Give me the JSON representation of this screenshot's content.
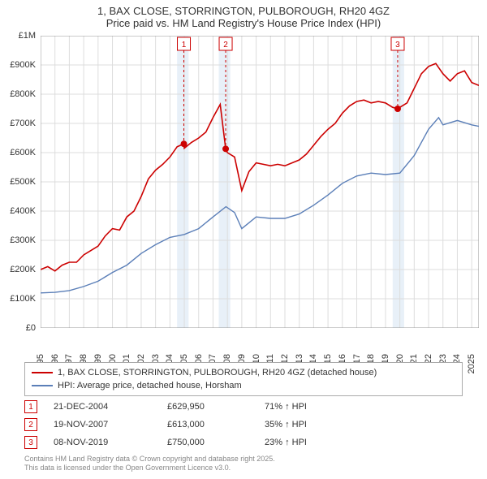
{
  "title": {
    "line1": "1, BAX CLOSE, STORRINGTON, PULBOROUGH, RH20 4GZ",
    "line2": "Price paid vs. HM Land Registry's House Price Index (HPI)",
    "fontsize": 13,
    "color": "#333333"
  },
  "chart": {
    "type": "line",
    "background_color": "#ffffff",
    "grid_color": "#dddddd",
    "axis_color": "#999999",
    "label_color": "#333333",
    "label_fontsize": 11,
    "x": {
      "min": 1995,
      "max": 2025.5,
      "ticks": [
        1995,
        1996,
        1997,
        1998,
        1999,
        2000,
        2001,
        2002,
        2003,
        2004,
        2005,
        2006,
        2007,
        2008,
        2009,
        2010,
        2011,
        2012,
        2013,
        2014,
        2015,
        2016,
        2017,
        2018,
        2019,
        2020,
        2021,
        2022,
        2023,
        2024,
        2025
      ],
      "tick_rotation_deg": -90
    },
    "y": {
      "min": 0,
      "max": 1000000,
      "ticks": [
        0,
        100000,
        200000,
        300000,
        400000,
        500000,
        600000,
        700000,
        800000,
        900000,
        1000000
      ],
      "tick_labels": [
        "£0",
        "£100K",
        "£200K",
        "£300K",
        "£400K",
        "£500K",
        "£600K",
        "£700K",
        "£800K",
        "£900K",
        "£1M"
      ]
    },
    "highlight_bands": {
      "color": "#d6e3f3",
      "opacity": 0.55,
      "years": [
        [
          2004.5,
          2005.3
        ],
        [
          2007.4,
          2008.2
        ],
        [
          2019.5,
          2020.3
        ]
      ]
    },
    "series": [
      {
        "name": "1, BAX CLOSE, STORRINGTON, PULBOROUGH, RH20 4GZ (detached house)",
        "color": "#cc0000",
        "line_width": 1.6,
        "points": [
          [
            1995,
            200000
          ],
          [
            1995.5,
            210000
          ],
          [
            1996,
            195000
          ],
          [
            1996.5,
            215000
          ],
          [
            1997,
            225000
          ],
          [
            1997.5,
            225000
          ],
          [
            1998,
            250000
          ],
          [
            1998.5,
            265000
          ],
          [
            1999,
            280000
          ],
          [
            1999.5,
            315000
          ],
          [
            2000,
            340000
          ],
          [
            2000.5,
            335000
          ],
          [
            2001,
            380000
          ],
          [
            2001.5,
            400000
          ],
          [
            2002,
            450000
          ],
          [
            2002.5,
            510000
          ],
          [
            2003,
            540000
          ],
          [
            2003.5,
            560000
          ],
          [
            2004,
            585000
          ],
          [
            2004.5,
            620000
          ],
          [
            2004.97,
            629950
          ],
          [
            2005,
            615000
          ],
          [
            2005.5,
            635000
          ],
          [
            2006,
            650000
          ],
          [
            2006.5,
            670000
          ],
          [
            2007,
            720000
          ],
          [
            2007.5,
            765000
          ],
          [
            2007.88,
            613000
          ],
          [
            2008,
            600000
          ],
          [
            2008.5,
            585000
          ],
          [
            2009,
            470000
          ],
          [
            2009.5,
            535000
          ],
          [
            2010,
            565000
          ],
          [
            2010.5,
            560000
          ],
          [
            2011,
            555000
          ],
          [
            2011.5,
            560000
          ],
          [
            2012,
            555000
          ],
          [
            2012.5,
            565000
          ],
          [
            2013,
            575000
          ],
          [
            2013.5,
            595000
          ],
          [
            2014,
            625000
          ],
          [
            2014.5,
            655000
          ],
          [
            2015,
            680000
          ],
          [
            2015.5,
            700000
          ],
          [
            2016,
            735000
          ],
          [
            2016.5,
            760000
          ],
          [
            2017,
            775000
          ],
          [
            2017.5,
            780000
          ],
          [
            2018,
            770000
          ],
          [
            2018.5,
            775000
          ],
          [
            2019,
            770000
          ],
          [
            2019.5,
            755000
          ],
          [
            2019.85,
            750000
          ],
          [
            2020,
            755000
          ],
          [
            2020.5,
            770000
          ],
          [
            2021,
            820000
          ],
          [
            2021.5,
            870000
          ],
          [
            2022,
            895000
          ],
          [
            2022.5,
            905000
          ],
          [
            2023,
            870000
          ],
          [
            2023.5,
            845000
          ],
          [
            2024,
            870000
          ],
          [
            2024.5,
            880000
          ],
          [
            2025,
            840000
          ],
          [
            2025.5,
            830000
          ]
        ]
      },
      {
        "name": "HPI: Average price, detached house, Horsham",
        "color": "#5b7fb8",
        "line_width": 1.4,
        "points": [
          [
            1995,
            120000
          ],
          [
            1996,
            122000
          ],
          [
            1997,
            128000
          ],
          [
            1998,
            142000
          ],
          [
            1999,
            160000
          ],
          [
            2000,
            190000
          ],
          [
            2001,
            215000
          ],
          [
            2002,
            255000
          ],
          [
            2003,
            285000
          ],
          [
            2004,
            310000
          ],
          [
            2005,
            320000
          ],
          [
            2006,
            340000
          ],
          [
            2007,
            380000
          ],
          [
            2007.9,
            415000
          ],
          [
            2008.5,
            395000
          ],
          [
            2009,
            340000
          ],
          [
            2009.5,
            360000
          ],
          [
            2010,
            380000
          ],
          [
            2011,
            375000
          ],
          [
            2012,
            375000
          ],
          [
            2013,
            390000
          ],
          [
            2014,
            420000
          ],
          [
            2015,
            455000
          ],
          [
            2016,
            495000
          ],
          [
            2017,
            520000
          ],
          [
            2018,
            530000
          ],
          [
            2019,
            525000
          ],
          [
            2020,
            530000
          ],
          [
            2021,
            590000
          ],
          [
            2022,
            680000
          ],
          [
            2022.7,
            720000
          ],
          [
            2023,
            695000
          ],
          [
            2024,
            710000
          ],
          [
            2025,
            695000
          ],
          [
            2025.5,
            690000
          ]
        ]
      }
    ],
    "sale_markers": {
      "border_color": "#cc0000",
      "text_color": "#cc0000",
      "dot_color": "#cc0000",
      "dash_color": "#cc0000",
      "dot_radius": 4,
      "points": [
        {
          "id": "1",
          "year": 2004.97,
          "price": 629950
        },
        {
          "id": "2",
          "year": 2007.88,
          "price": 613000
        },
        {
          "id": "3",
          "year": 2019.85,
          "price": 750000
        }
      ]
    }
  },
  "legend": {
    "items": [
      {
        "label": "1, BAX CLOSE, STORRINGTON, PULBOROUGH, RH20 4GZ (detached house)",
        "color": "#cc0000"
      },
      {
        "label": "HPI: Average price, detached house, Horsham",
        "color": "#5b7fb8"
      }
    ],
    "border_color": "#aaaaaa",
    "fontsize": 11
  },
  "sales_table": {
    "marker_border_color": "#cc0000",
    "marker_text_color": "#cc0000",
    "rows": [
      {
        "id": "1",
        "date": "21-DEC-2004",
        "price": "£629,950",
        "hpi": "71% ↑ HPI"
      },
      {
        "id": "2",
        "date": "19-NOV-2007",
        "price": "£613,000",
        "hpi": "35% ↑ HPI"
      },
      {
        "id": "3",
        "date": "08-NOV-2019",
        "price": "£750,000",
        "hpi": "23% ↑ HPI"
      }
    ],
    "fontsize": 11
  },
  "footnote": {
    "line1": "Contains HM Land Registry data © Crown copyright and database right 2025.",
    "line2": "This data is licensed under the Open Government Licence v3.0.",
    "color": "#888888",
    "fontsize": 9
  }
}
